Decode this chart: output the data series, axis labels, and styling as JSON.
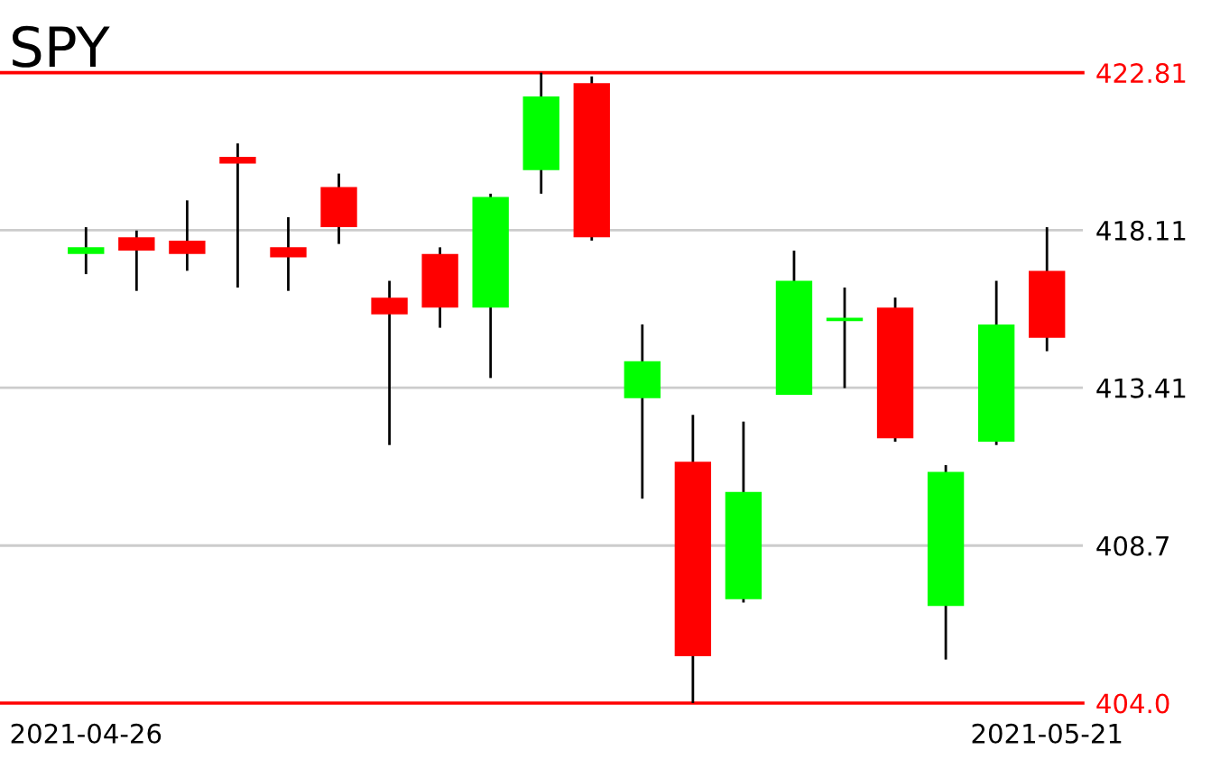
{
  "chart_data": {
    "type": "candlestick",
    "title": "SPY",
    "categories": [
      "2021-04-26",
      null,
      null,
      null,
      null,
      null,
      null,
      null,
      null,
      null,
      null,
      null,
      null,
      null,
      null,
      null,
      null,
      null,
      null,
      "2021-05-21"
    ],
    "ohlc": [
      [
        417.4,
        418.2,
        416.8,
        417.6
      ],
      [
        417.9,
        418.1,
        416.3,
        417.5
      ],
      [
        417.8,
        419.0,
        416.9,
        417.4
      ],
      [
        420.3,
        420.7,
        416.4,
        420.1
      ],
      [
        417.6,
        418.5,
        416.3,
        417.3
      ],
      [
        419.4,
        419.8,
        417.7,
        418.2
      ],
      [
        416.1,
        416.6,
        411.7,
        415.6
      ],
      [
        417.4,
        417.6,
        415.2,
        415.8
      ],
      [
        415.8,
        419.2,
        413.7,
        419.1
      ],
      [
        419.9,
        422.81,
        419.2,
        422.1
      ],
      [
        422.5,
        422.7,
        417.8,
        417.9
      ],
      [
        413.1,
        415.3,
        410.1,
        414.2
      ],
      [
        411.2,
        412.6,
        404.0,
        405.4
      ],
      [
        407.1,
        412.4,
        407.0,
        410.3
      ],
      [
        413.2,
        417.5,
        413.2,
        416.6
      ],
      [
        415.4,
        416.4,
        413.4,
        415.5
      ],
      [
        415.8,
        416.1,
        411.8,
        411.9
      ],
      [
        406.9,
        411.1,
        405.3,
        410.9
      ],
      [
        411.8,
        416.6,
        411.7,
        415.3
      ],
      [
        416.9,
        418.2,
        414.5,
        414.9
      ]
    ],
    "colors": [
      "#00ff00",
      "#ff0000",
      "#ff0000",
      "#ff0000",
      "#ff0000",
      "#ff0000",
      "#ff0000",
      "#ff0000",
      "#00ff00",
      "#00ff00",
      "#ff0000",
      "#00ff00",
      "#ff0000",
      "#00ff00",
      "#00ff00",
      "#00ff00",
      "#ff0000",
      "#00ff00",
      "#00ff00",
      "#ff0000"
    ],
    "ylim": [
      404.0,
      422.81
    ],
    "yticks": [
      {
        "value": 404.0,
        "label": "404.0"
      },
      408.7,
      413.41,
      418.11,
      422.81
    ],
    "grid": "y"
  }
}
